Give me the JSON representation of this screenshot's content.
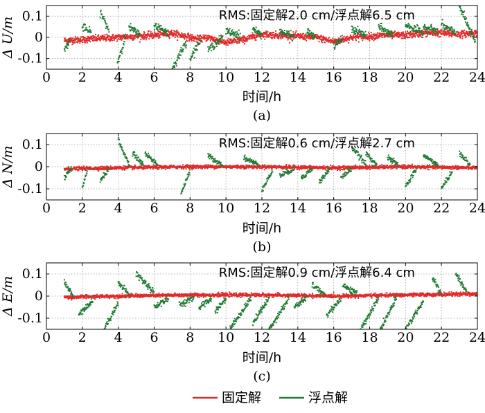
{
  "chart_data": [
    {
      "type": "scatter",
      "panel_label": "(a)",
      "ylabel": "Δ U/m",
      "xlabel": "时间/h",
      "annotation": "RMS:固定解2.0 cm/浮点解6.5 cm",
      "xlim": [
        0,
        24
      ],
      "ylim": [
        -0.15,
        0.15
      ],
      "xticks": [
        "0",
        "2",
        "4",
        "6",
        "8",
        "10",
        "12",
        "14",
        "16",
        "18",
        "20",
        "22",
        "24"
      ],
      "yticks": [
        "0.1",
        "0",
        "-0.1"
      ],
      "grid": true,
      "series": [
        {
          "name": "固定解",
          "color": "#e02b2b",
          "noise_sd": 0.008,
          "segments": [
            {
              "x": [
                1.0,
                2.0,
                3.0,
                4.0,
                5.0,
                6.0,
                7.0,
                7.5,
                8.0,
                8.5,
                9.0,
                10.0,
                11.0,
                12.0,
                13.0,
                14.0,
                15.0,
                16.0,
                17.0,
                18.0,
                19.0,
                20.0,
                21.0,
                22.0,
                23.0,
                24.0
              ],
              "y": [
                -0.015,
                -0.01,
                -0.005,
                0.0,
                0.005,
                0.01,
                0.02,
                0.01,
                0.0,
                -0.01,
                0.0,
                -0.025,
                -0.01,
                0.015,
                0.01,
                0.005,
                0.0,
                -0.02,
                0.0,
                0.005,
                0.01,
                0.01,
                0.02,
                0.02,
                0.015,
                0.02
              ]
            }
          ]
        },
        {
          "name": "浮点解",
          "color": "#1f7a32",
          "noise_sd": 0.009,
          "segments": [
            {
              "x": [
                1.0,
                1.3
              ],
              "y": [
                -0.06,
                -0.02
              ]
            },
            {
              "x": [
                2.0,
                2.5
              ],
              "y": [
                0.05,
                0.02
              ]
            },
            {
              "x": [
                3.0,
                3.5
              ],
              "y": [
                0.12,
                0.03
              ]
            },
            {
              "x": [
                3.95,
                4.4
              ],
              "y": [
                -0.12,
                0.0
              ]
            },
            {
              "x": [
                4.6,
                5.2
              ],
              "y": [
                0.05,
                0.01
              ]
            },
            {
              "x": [
                6.0,
                6.8
              ],
              "y": [
                0.06,
                0.02
              ]
            },
            {
              "x": [
                7.0,
                7.8
              ],
              "y": [
                -0.15,
                -0.02
              ]
            },
            {
              "x": [
                8.0,
                8.6
              ],
              "y": [
                -0.1,
                -0.01
              ]
            },
            {
              "x": [
                9.0,
                9.8
              ],
              "y": [
                -0.06,
                0.0
              ]
            },
            {
              "x": [
                10.0,
                10.8
              ],
              "y": [
                0.03,
                0.01
              ]
            },
            {
              "x": [
                11.5,
                12.0
              ],
              "y": [
                0.04,
                0.01
              ]
            },
            {
              "x": [
                13.0,
                13.8
              ],
              "y": [
                0.03,
                0.0
              ]
            },
            {
              "x": [
                14.5,
                15.0
              ],
              "y": [
                0.03,
                0.0
              ]
            },
            {
              "x": [
                16.0,
                16.5
              ],
              "y": [
                -0.04,
                -0.01
              ]
            },
            {
              "x": [
                17.0,
                17.8
              ],
              "y": [
                0.04,
                0.01
              ]
            },
            {
              "x": [
                18.5,
                19.3
              ],
              "y": [
                0.05,
                0.01
              ]
            },
            {
              "x": [
                20.0,
                21.0
              ],
              "y": [
                0.06,
                0.02
              ]
            },
            {
              "x": [
                21.0,
                21.8
              ],
              "y": [
                0.05,
                0.03
              ]
            },
            {
              "x": [
                22.0,
                22.8
              ],
              "y": [
                0.06,
                0.02
              ]
            },
            {
              "x": [
                23.0,
                23.9
              ],
              "y": [
                0.15,
                -0.03
              ]
            }
          ]
        }
      ]
    },
    {
      "type": "scatter",
      "panel_label": "(b)",
      "ylabel": "Δ N/m",
      "xlabel": "时间/h",
      "annotation": "RMS:固定解0.6 cm/浮点解2.7 cm",
      "xlim": [
        0,
        24
      ],
      "ylim": [
        -0.15,
        0.15
      ],
      "xticks": [
        "0",
        "2",
        "4",
        "6",
        "8",
        "10",
        "12",
        "14",
        "16",
        "18",
        "20",
        "22",
        "24"
      ],
      "yticks": [
        "0.1",
        "0",
        "-0.1"
      ],
      "grid": true,
      "series": [
        {
          "name": "固定解",
          "color": "#e02b2b",
          "noise_sd": 0.004,
          "segments": [
            {
              "x": [
                1.0,
                4.0,
                8.0,
                12.0,
                16.0,
                20.0,
                24.0
              ],
              "y": [
                -0.01,
                -0.005,
                0.0,
                0.0,
                -0.005,
                0.0,
                -0.005
              ]
            }
          ]
        },
        {
          "name": "浮点解",
          "color": "#1f7a32",
          "noise_sd": 0.006,
          "segments": [
            {
              "x": [
                1.0,
                1.4
              ],
              "y": [
                -0.05,
                -0.01
              ]
            },
            {
              "x": [
                2.0,
                2.3
              ],
              "y": [
                -0.1,
                -0.01
              ]
            },
            {
              "x": [
                3.0,
                3.5
              ],
              "y": [
                -0.06,
                -0.01
              ]
            },
            {
              "x": [
                4.0,
                4.6
              ],
              "y": [
                0.12,
                0.01
              ]
            },
            {
              "x": [
                4.8,
                5.4
              ],
              "y": [
                0.06,
                0.01
              ]
            },
            {
              "x": [
                5.5,
                6.2
              ],
              "y": [
                0.06,
                0.01
              ]
            },
            {
              "x": [
                7.5,
                8.0
              ],
              "y": [
                -0.12,
                -0.02
              ]
            },
            {
              "x": [
                9.0,
                9.8
              ],
              "y": [
                0.05,
                0.01
              ]
            },
            {
              "x": [
                11.0,
                11.8
              ],
              "y": [
                0.04,
                0.01
              ]
            },
            {
              "x": [
                12.0,
                12.6
              ],
              "y": [
                -0.1,
                -0.02
              ]
            },
            {
              "x": [
                13.0,
                13.8
              ],
              "y": [
                -0.04,
                -0.01
              ]
            },
            {
              "x": [
                14.2,
                14.8
              ],
              "y": [
                -0.05,
                -0.01
              ]
            },
            {
              "x": [
                15.2,
                15.8
              ],
              "y": [
                -0.07,
                -0.01
              ]
            },
            {
              "x": [
                16.4,
                17.0
              ],
              "y": [
                -0.05,
                -0.01
              ]
            },
            {
              "x": [
                17.0,
                17.8
              ],
              "y": [
                0.09,
                0.01
              ]
            },
            {
              "x": [
                17.8,
                18.4
              ],
              "y": [
                0.06,
                0.01
              ]
            },
            {
              "x": [
                19.0,
                19.6
              ],
              "y": [
                0.04,
                0.01
              ]
            },
            {
              "x": [
                20.0,
                20.6
              ],
              "y": [
                -0.09,
                -0.01
              ]
            },
            {
              "x": [
                21.0,
                21.8
              ],
              "y": [
                0.05,
                0.01
              ]
            },
            {
              "x": [
                22.0,
                22.6
              ],
              "y": [
                -0.1,
                -0.02
              ]
            },
            {
              "x": [
                23.0,
                23.6
              ],
              "y": [
                0.06,
                0.01
              ]
            }
          ]
        }
      ]
    },
    {
      "type": "scatter",
      "panel_label": "(c)",
      "ylabel": "Δ E/m",
      "xlabel": "时间/h",
      "annotation": "RMS:固定解0.9 cm/浮点解6.4 cm",
      "xlim": [
        0,
        24
      ],
      "ylim": [
        -0.15,
        0.15
      ],
      "xticks": [
        "0",
        "2",
        "4",
        "6",
        "8",
        "10",
        "12",
        "14",
        "16",
        "18",
        "20",
        "22",
        "24"
      ],
      "yticks": [
        "0.1",
        "0",
        "-0.1"
      ],
      "grid": true,
      "series": [
        {
          "name": "固定解",
          "color": "#e02b2b",
          "noise_sd": 0.004,
          "segments": [
            {
              "x": [
                1.0,
                4.0,
                8.0,
                12.0,
                16.0,
                20.0,
                24.0
              ],
              "y": [
                -0.005,
                0.0,
                0.005,
                0.005,
                0.0,
                0.005,
                0.01
              ]
            }
          ]
        },
        {
          "name": "浮点解",
          "color": "#1f7a32",
          "noise_sd": 0.007,
          "segments": [
            {
              "x": [
                1.0,
                1.5
              ],
              "y": [
                0.06,
                0.0
              ]
            },
            {
              "x": [
                1.8,
                2.6
              ],
              "y": [
                -0.08,
                -0.02
              ]
            },
            {
              "x": [
                3.2,
                4.0
              ],
              "y": [
                -0.15,
                -0.03
              ]
            },
            {
              "x": [
                4.0,
                4.6
              ],
              "y": [
                0.06,
                0.01
              ]
            },
            {
              "x": [
                5.0,
                6.0
              ],
              "y": [
                0.1,
                0.02
              ]
            },
            {
              "x": [
                6.0,
                6.8
              ],
              "y": [
                -0.05,
                -0.01
              ]
            },
            {
              "x": [
                7.4,
                8.2
              ],
              "y": [
                -0.04,
                -0.01
              ]
            },
            {
              "x": [
                8.5,
                9.2
              ],
              "y": [
                -0.05,
                -0.01
              ]
            },
            {
              "x": [
                9.4,
                10.0
              ],
              "y": [
                -0.07,
                -0.01
              ]
            },
            {
              "x": [
                10.2,
                11.4
              ],
              "y": [
                -0.15,
                -0.01
              ]
            },
            {
              "x": [
                11.5,
                12.4
              ],
              "y": [
                -0.12,
                -0.01
              ]
            },
            {
              "x": [
                12.4,
                13.5
              ],
              "y": [
                -0.15,
                -0.01
              ]
            },
            {
              "x": [
                13.8,
                14.5
              ],
              "y": [
                -0.05,
                -0.01
              ]
            },
            {
              "x": [
                14.8,
                15.5
              ],
              "y": [
                0.05,
                0.01
              ]
            },
            {
              "x": [
                15.6,
                16.4
              ],
              "y": [
                -0.09,
                -0.01
              ]
            },
            {
              "x": [
                16.5,
                17.3
              ],
              "y": [
                0.05,
                0.01
              ]
            },
            {
              "x": [
                17.5,
                18.5
              ],
              "y": [
                -0.15,
                -0.01
              ]
            },
            {
              "x": [
                18.6,
                19.5
              ],
              "y": [
                -0.15,
                -0.01
              ]
            },
            {
              "x": [
                20.0,
                21.0
              ],
              "y": [
                -0.15,
                -0.02
              ]
            },
            {
              "x": [
                21.5,
                22.0
              ],
              "y": [
                0.08,
                0.01
              ]
            },
            {
              "x": [
                22.8,
                23.4
              ],
              "y": [
                0.1,
                0.02
              ]
            }
          ]
        }
      ]
    }
  ],
  "legend": {
    "placement": "bottom-center",
    "items": [
      {
        "label": "固定解",
        "color": "#e02b2b"
      },
      {
        "label": "浮点解",
        "color": "#1f7a32"
      }
    ]
  }
}
